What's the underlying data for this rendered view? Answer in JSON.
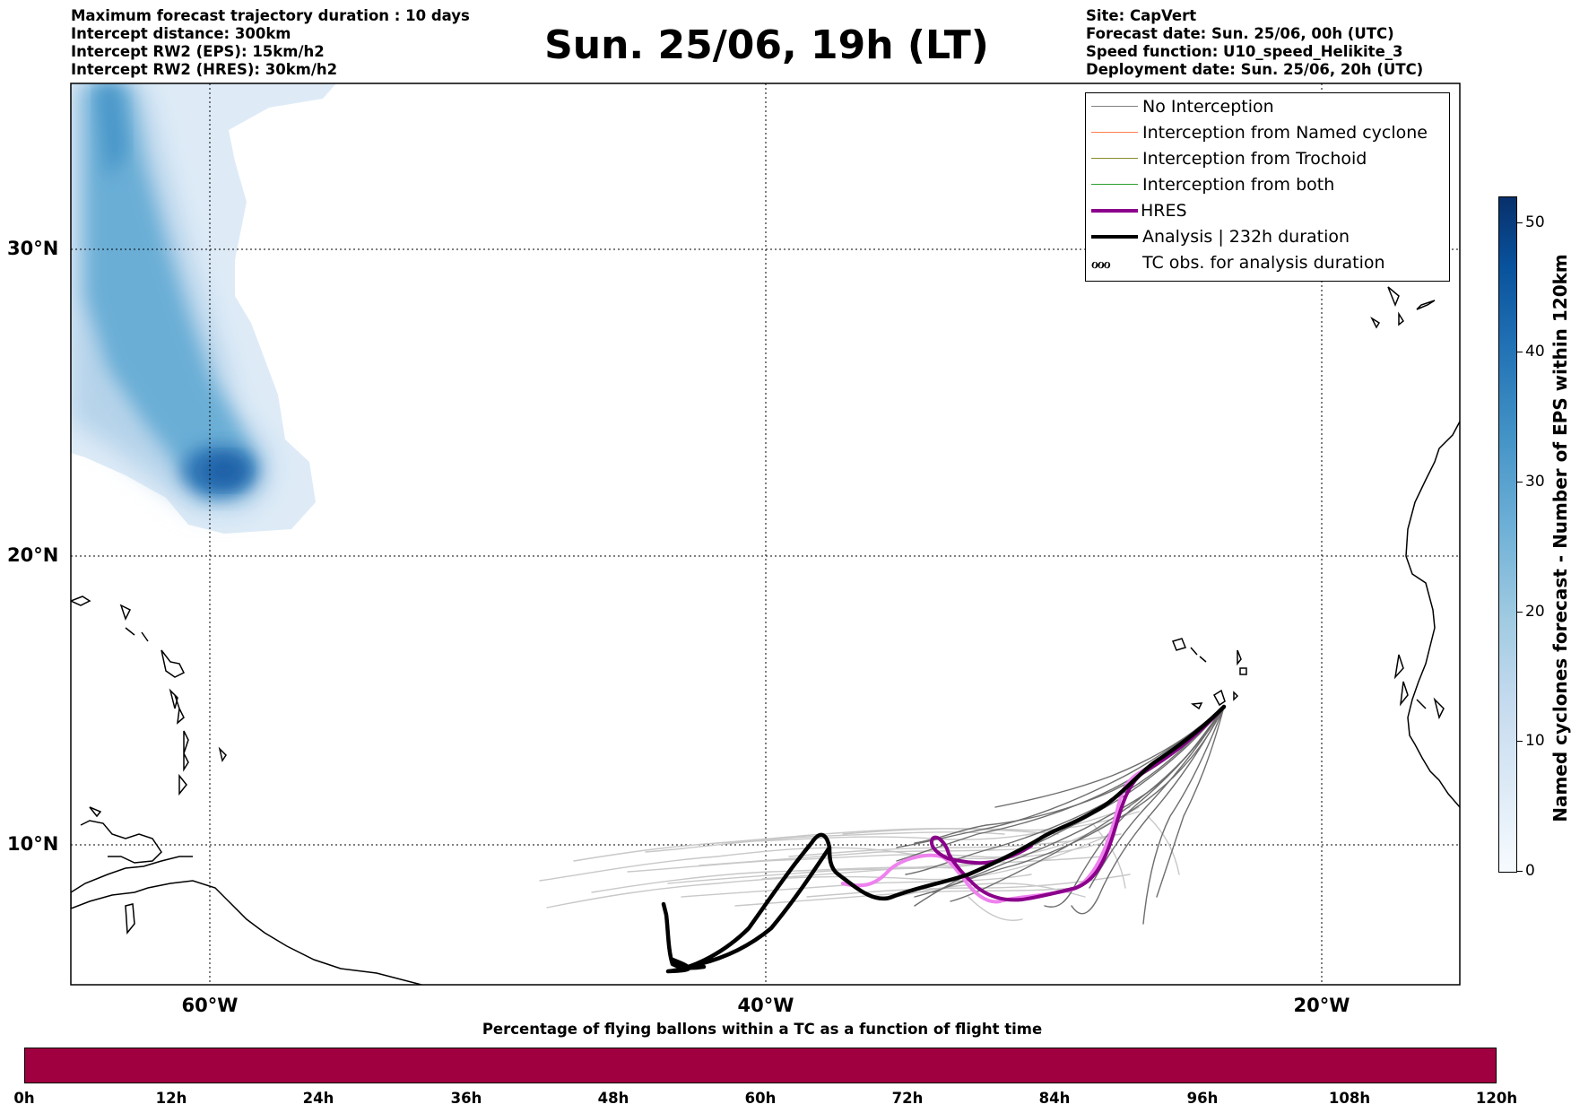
{
  "header": {
    "left": [
      "Maximum forecast trajectory duration : 10 days",
      "Intercept distance: 300km",
      "Intercept RW2 (EPS):  15km/h2",
      "Intercept RW2 (HRES): 30km/h2"
    ],
    "title": "Sun. 25/06, 19h (LT)",
    "right": [
      "Site: CapVert",
      "Forecast date: Sun. 25/06, 00h (UTC)",
      "Speed function: U10_speed_Helikite_3",
      "Deployment date: Sun. 25/06, 20h (UTC)"
    ]
  },
  "map": {
    "lat_labels": [
      "30°N",
      "20°N",
      "10°N"
    ],
    "lon_labels": [
      "60°W",
      "40°W",
      "20°W"
    ],
    "grid": "dotted"
  },
  "legend": {
    "items": [
      {
        "label": "No Interception",
        "color": "#808080"
      },
      {
        "label": "Interception from Named cyclone",
        "color": "#ff7f50"
      },
      {
        "label": "Interception from Trochoid",
        "color": "#8b8b2a"
      },
      {
        "label": "Interception from both",
        "color": "#2ca02c"
      },
      {
        "label": "HRES",
        "color": "#8b008b"
      },
      {
        "label": "Analysis | 232h duration",
        "color": "#000000"
      },
      {
        "label": "TC obs. for analysis duration",
        "symbol": "ℴℴℴ"
      }
    ]
  },
  "colorbar": {
    "title": "Named cyclones forecast - Number of EPS within 120km",
    "ticks": [
      "0",
      "10",
      "20",
      "30",
      "40",
      "50"
    ],
    "colormap": "Blues"
  },
  "flight_bar": {
    "title": "Percentage of flying ballons within a TC as a function of flight time",
    "color": "#a00040",
    "ticks": [
      "0h",
      "12h",
      "24h",
      "36h",
      "48h",
      "60h",
      "72h",
      "84h",
      "96h",
      "108h",
      "120h"
    ]
  }
}
